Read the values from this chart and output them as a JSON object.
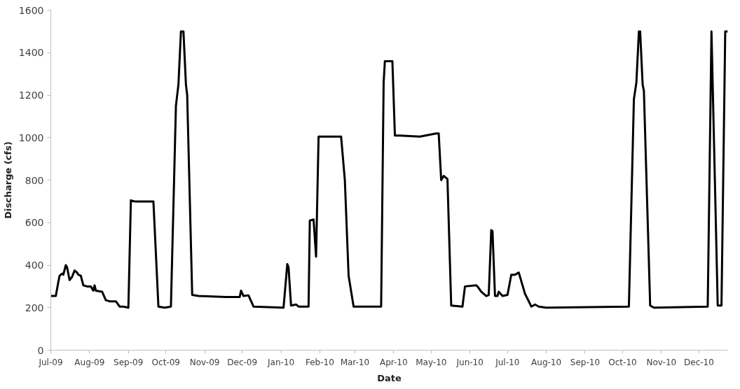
{
  "chart_data": {
    "type": "line",
    "xlabel": "Date",
    "ylabel": "Discharge (cfs)",
    "x": [
      "2009-07-01",
      "2009-07-05",
      "2009-07-07",
      "2009-07-08",
      "2009-07-10",
      "2009-07-11",
      "2009-07-13",
      "2009-07-14",
      "2009-07-16",
      "2009-07-18",
      "2009-07-20",
      "2009-07-22",
      "2009-07-23",
      "2009-07-25",
      "2009-07-27",
      "2009-07-30",
      "2009-08-02",
      "2009-08-04",
      "2009-08-05",
      "2009-08-06",
      "2009-08-11",
      "2009-08-14",
      "2009-08-17",
      "2009-08-22",
      "2009-08-25",
      "2009-08-28",
      "2009-09-01",
      "2009-09-03",
      "2009-09-06",
      "2009-09-12",
      "2009-09-21",
      "2009-09-25",
      "2009-09-30",
      "2009-10-05",
      "2009-10-09",
      "2009-10-11",
      "2009-10-13",
      "2009-10-15",
      "2009-10-17",
      "2009-10-18",
      "2009-10-22",
      "2009-10-27",
      "2009-11-18",
      "2009-11-29",
      "2009-11-30",
      "2009-12-02",
      "2009-12-06",
      "2009-12-10",
      "2010-01-03",
      "2010-01-06",
      "2010-01-07",
      "2010-01-09",
      "2010-01-13",
      "2010-01-15",
      "2010-01-23",
      "2010-01-24",
      "2010-01-27",
      "2010-01-29",
      "2010-01-31",
      "2010-02-18",
      "2010-02-21",
      "2010-02-24",
      "2010-02-28",
      "2010-03-22",
      "2010-03-24",
      "2010-03-25",
      "2010-03-31",
      "2010-04-02",
      "2010-04-06",
      "2010-04-22",
      "2010-05-05",
      "2010-05-07",
      "2010-05-09",
      "2010-05-11",
      "2010-05-14",
      "2010-05-17",
      "2010-05-26",
      "2010-05-28",
      "2010-06-06",
      "2010-06-07",
      "2010-06-10",
      "2010-06-14",
      "2010-06-16",
      "2010-06-18",
      "2010-06-19",
      "2010-06-21",
      "2010-06-23",
      "2010-06-24",
      "2010-06-27",
      "2010-07-01",
      "2010-07-04",
      "2010-07-07",
      "2010-07-10",
      "2010-07-15",
      "2010-07-18",
      "2010-07-20",
      "2010-07-23",
      "2010-07-26",
      "2010-08-01",
      "2010-10-06",
      "2010-10-10",
      "2010-10-12",
      "2010-10-14",
      "2010-10-15",
      "2010-10-17",
      "2010-10-18",
      "2010-10-23",
      "2010-10-26",
      "2010-12-08",
      "2010-12-11",
      "2010-12-16",
      "2010-12-19",
      "2010-12-22",
      "2010-12-24"
    ],
    "series": [
      {
        "color": "#000000",
        "values": [
          255,
          255,
          320,
          350,
          360,
          355,
          400,
          390,
          330,
          345,
          375,
          365,
          355,
          350,
          305,
          300,
          300,
          280,
          305,
          280,
          275,
          235,
          230,
          230,
          205,
          205,
          200,
          705,
          700,
          700,
          700,
          205,
          200,
          205,
          1150,
          1250,
          1500,
          1500,
          1250,
          1200,
          260,
          255,
          250,
          250,
          280,
          255,
          258,
          205,
          200,
          405,
          390,
          210,
          215,
          205,
          205,
          610,
          615,
          440,
          1005,
          1005,
          800,
          350,
          205,
          205,
          1260,
          1360,
          1360,
          1010,
          1010,
          1005,
          1020,
          1020,
          800,
          820,
          805,
          210,
          205,
          300,
          305,
          300,
          275,
          255,
          260,
          565,
          560,
          255,
          255,
          275,
          255,
          260,
          355,
          355,
          365,
          265,
          230,
          205,
          215,
          205,
          200,
          205,
          1180,
          1260,
          1500,
          1500,
          1250,
          1220,
          210,
          200,
          205,
          1500,
          210,
          210,
          1500,
          1500
        ]
      }
    ],
    "xlim": [
      "2009-07-01",
      "2010-12-24"
    ],
    "xticks": [
      {
        "value": "2009-07-01",
        "label": "Jul-09"
      },
      {
        "value": "2009-08-01",
        "label": "Aug-09"
      },
      {
        "value": "2009-09-01",
        "label": "Sep-09"
      },
      {
        "value": "2009-10-01",
        "label": "Oct-09"
      },
      {
        "value": "2009-11-01",
        "label": "Nov-09"
      },
      {
        "value": "2009-12-01",
        "label": "Dec-09"
      },
      {
        "value": "2010-01-01",
        "label": "Jan-10"
      },
      {
        "value": "2010-02-01",
        "label": "Feb-10"
      },
      {
        "value": "2010-03-01",
        "label": "Mar-10"
      },
      {
        "value": "2010-04-01",
        "label": "Apr-10"
      },
      {
        "value": "2010-05-01",
        "label": "May-10"
      },
      {
        "value": "2010-06-01",
        "label": "Jun-10"
      },
      {
        "value": "2010-07-01",
        "label": "Jul-10"
      },
      {
        "value": "2010-08-01",
        "label": "Aug-10"
      },
      {
        "value": "2010-09-01",
        "label": "Sep-10"
      },
      {
        "value": "2010-10-01",
        "label": "Oct-10"
      },
      {
        "value": "2010-11-01",
        "label": "Nov-10"
      },
      {
        "value": "2010-12-01",
        "label": "Dec-10"
      }
    ],
    "ylim": [
      0,
      1600
    ],
    "yticks": [
      0,
      200,
      400,
      600,
      800,
      1000,
      1200,
      1400,
      1600
    ],
    "grid": false,
    "marker": "none",
    "line_style": "solid"
  }
}
